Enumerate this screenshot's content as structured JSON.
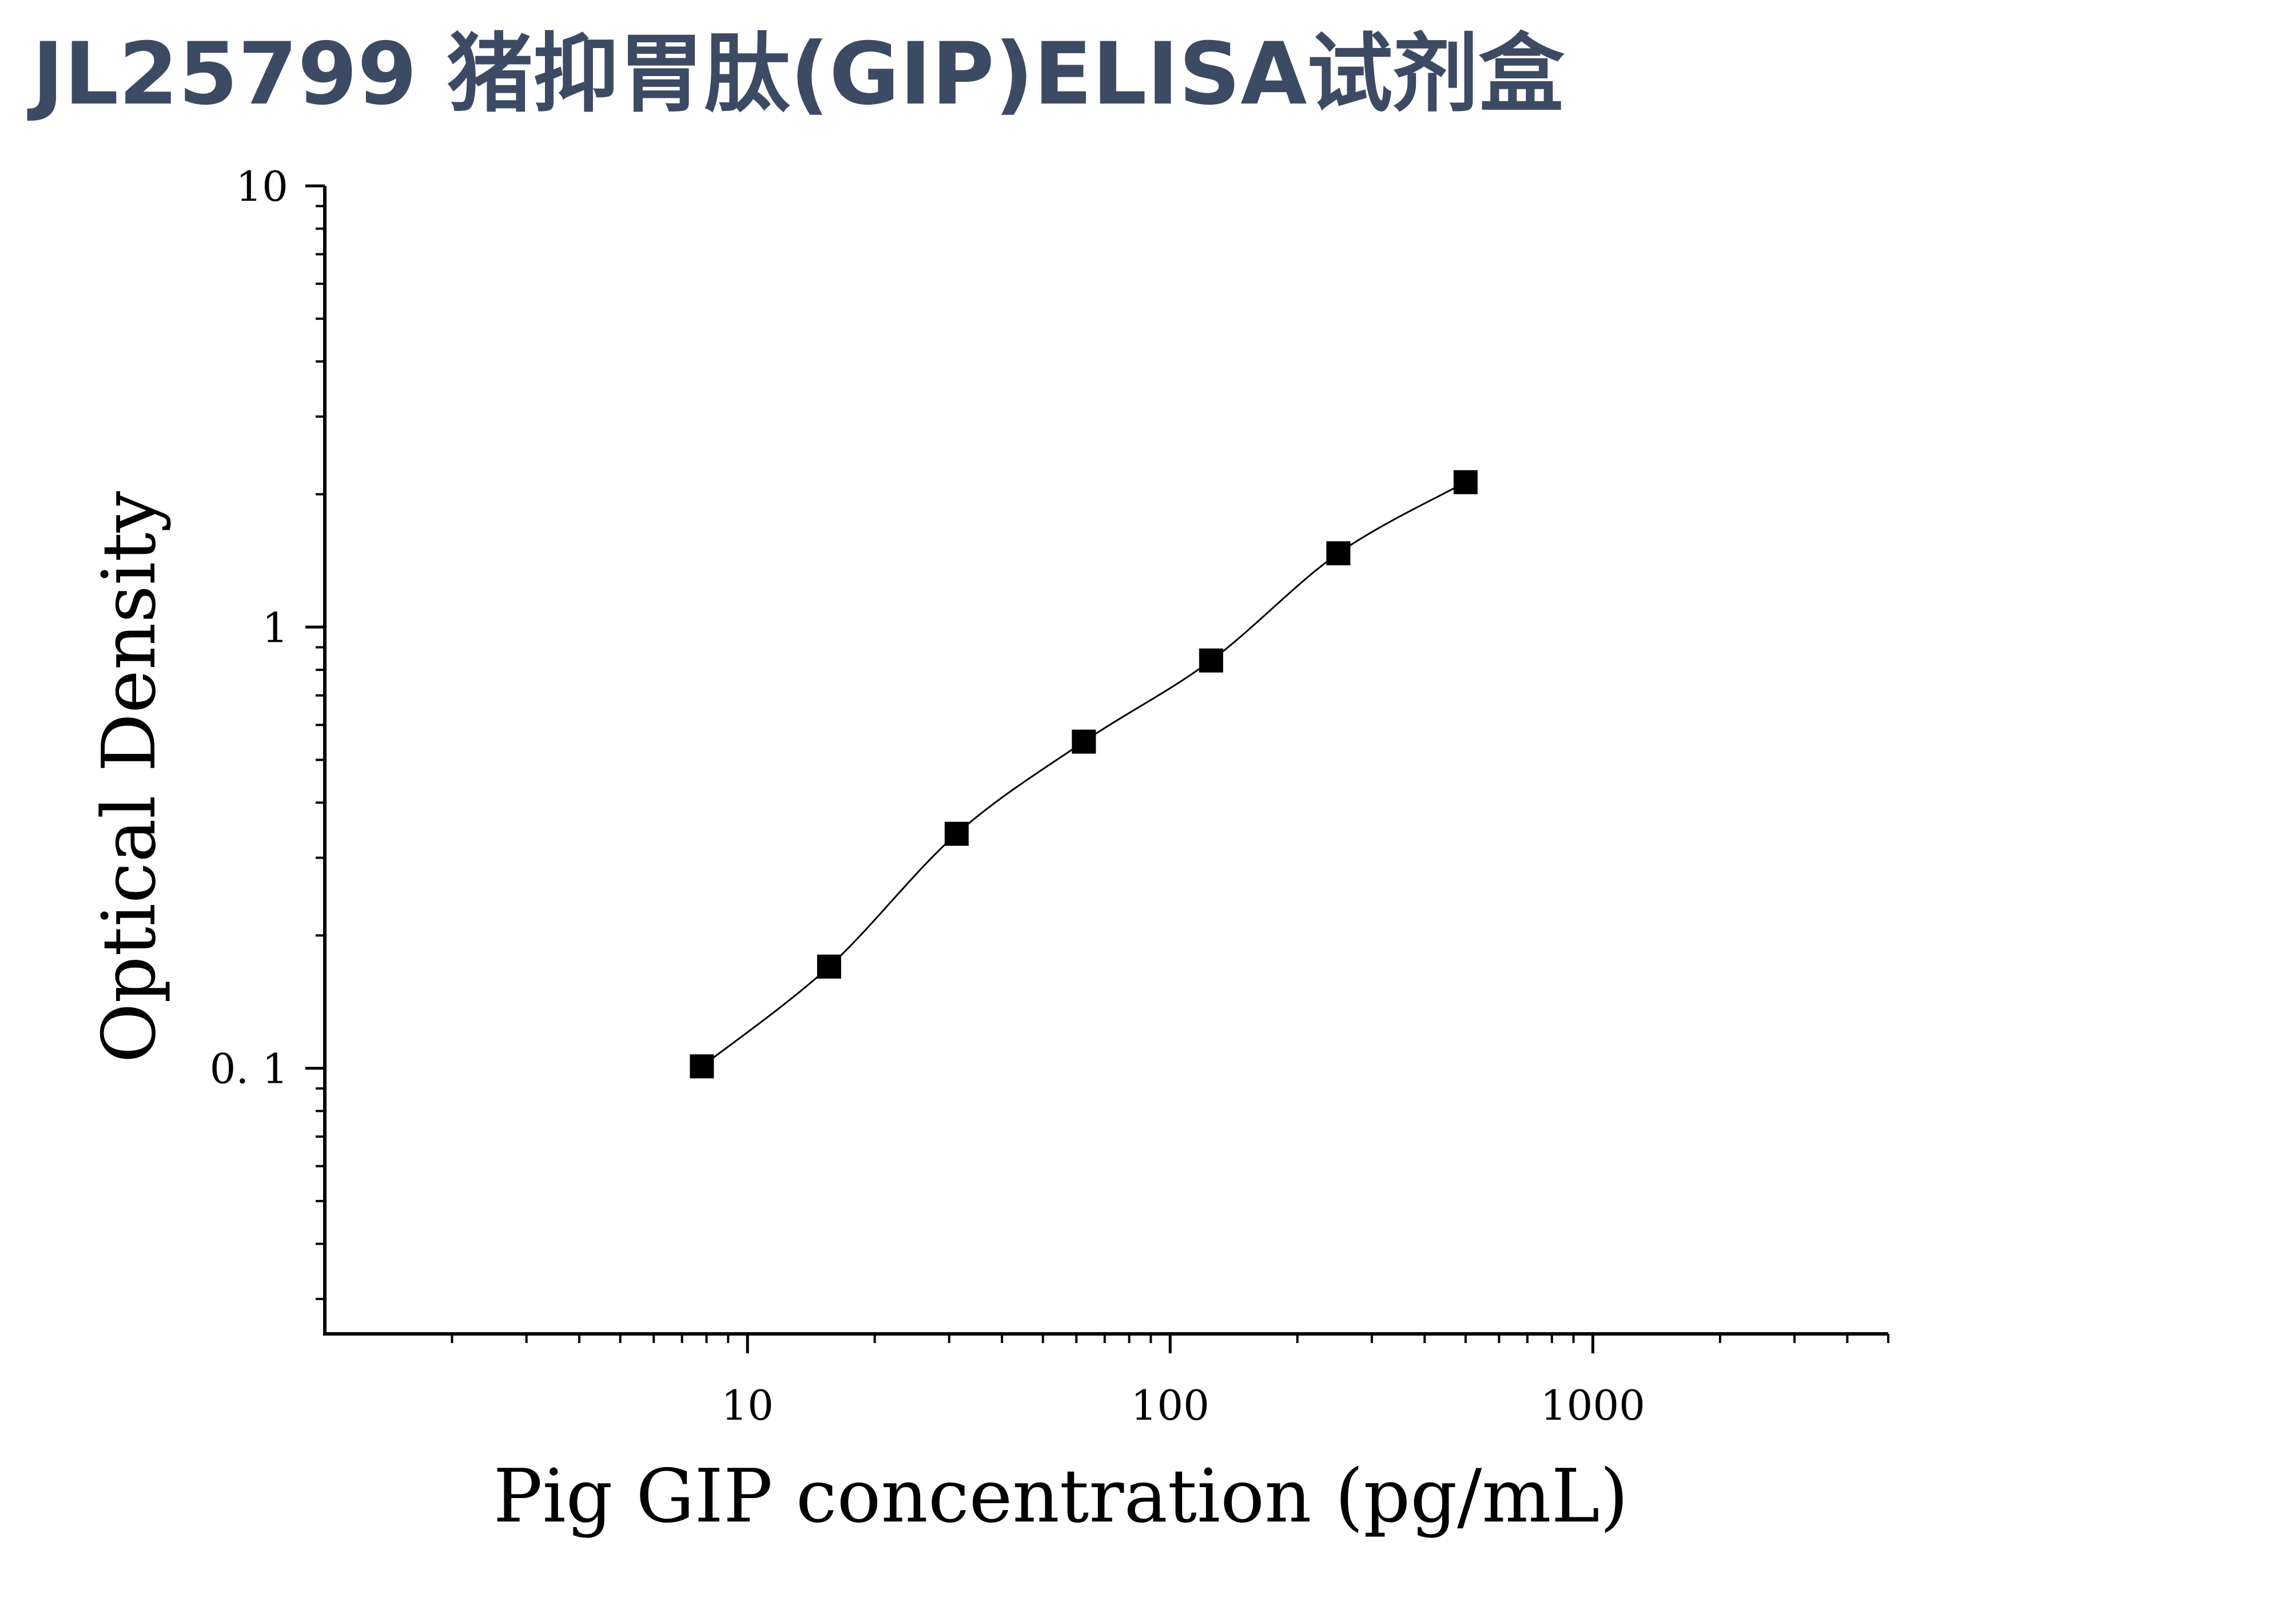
{
  "title": "JL25799 猪抑胃肽(GIP)ELISA试剂盒",
  "chart_data": {
    "type": "scatter",
    "xlabel": "Pig GIP concentration (pg/mL)",
    "ylabel": "Optical Density",
    "x_scale": "log",
    "y_scale": "log",
    "xlim": [
      1,
      5000
    ],
    "ylim": [
      0.025,
      10
    ],
    "x_ticks": [
      10,
      100,
      1000
    ],
    "x_tick_labels": [
      "10",
      "100",
      "1000"
    ],
    "y_ticks": [
      0.1,
      1,
      10
    ],
    "y_tick_labels": [
      "0. 1",
      "1",
      "10"
    ],
    "grid": false,
    "legend": "none",
    "series": [
      {
        "marker": "square",
        "color": "#000000",
        "x": [
          7.8,
          15.6,
          31.25,
          62.5,
          125,
          250,
          500
        ],
        "y": [
          0.101,
          0.17,
          0.34,
          0.55,
          0.84,
          1.47,
          2.13
        ]
      }
    ],
    "fit_curve": {
      "color": "#000000",
      "x_range": [
        7.8,
        500
      ]
    }
  }
}
